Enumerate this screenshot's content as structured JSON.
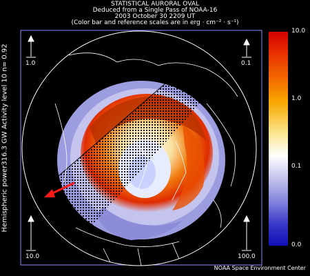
{
  "title": {
    "line1": "STATISTICAL AURORAL OVAL",
    "line2": "Deduced from a Single Pass of NOAA-16",
    "line3": "2003 October 30 2209 UT",
    "line4": "(Color bar and reference scales are in erg · cm⁻² · s⁻¹)"
  },
  "side_label": "Hemispheric power316.3 GW   Activity level 10   n=  0.92",
  "reference_scales": {
    "top_left": "1.0",
    "top_right": "0.1",
    "bottom_left": "10.0",
    "bottom_right": "100.0"
  },
  "colorbar": {
    "max_label": "10.0",
    "mid_high_label": "1.0",
    "mid_low_label": "0.1",
    "min_label": "0.0"
  },
  "footer": "NOAA Space Environment Center",
  "colors": {
    "background": "#000000",
    "low_flux": "#1010b8",
    "mid_flux": "#ffffff",
    "high_flux": "#d40000",
    "sun_arrow": "#ff1a1a"
  }
}
